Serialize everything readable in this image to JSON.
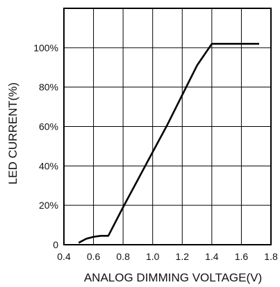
{
  "chart_data": {
    "type": "line",
    "title": "",
    "xlabel": "ANALOG DIMMING VOLTAGE(V)",
    "ylabel": "LED CURRENT(%)",
    "xlim": [
      0.4,
      1.8
    ],
    "ylim": [
      0,
      120
    ],
    "x_ticks": [
      0.4,
      0.6,
      0.8,
      1.0,
      1.2,
      1.4,
      1.6,
      1.8
    ],
    "x_tick_labels": [
      "0.4",
      "0.6",
      "0.8",
      "1.0",
      "1.2",
      "1.4",
      "1.6",
      "1.8"
    ],
    "y_ticks": [
      0,
      20,
      40,
      60,
      80,
      100
    ],
    "y_tick_labels": [
      "0",
      "20%",
      "40%",
      "60%",
      "80%",
      "100%"
    ],
    "grid": true,
    "series": [
      {
        "x": [
          0.5,
          0.55,
          0.6,
          0.65,
          0.7,
          0.8,
          0.9,
          1.0,
          1.1,
          1.2,
          1.3,
          1.4,
          1.5,
          1.6,
          1.72
        ],
        "y": [
          1,
          3,
          4,
          4.5,
          4.5,
          19,
          33,
          47,
          61,
          76,
          91,
          102,
          102,
          102,
          102
        ]
      }
    ],
    "line_color": "#000000"
  }
}
